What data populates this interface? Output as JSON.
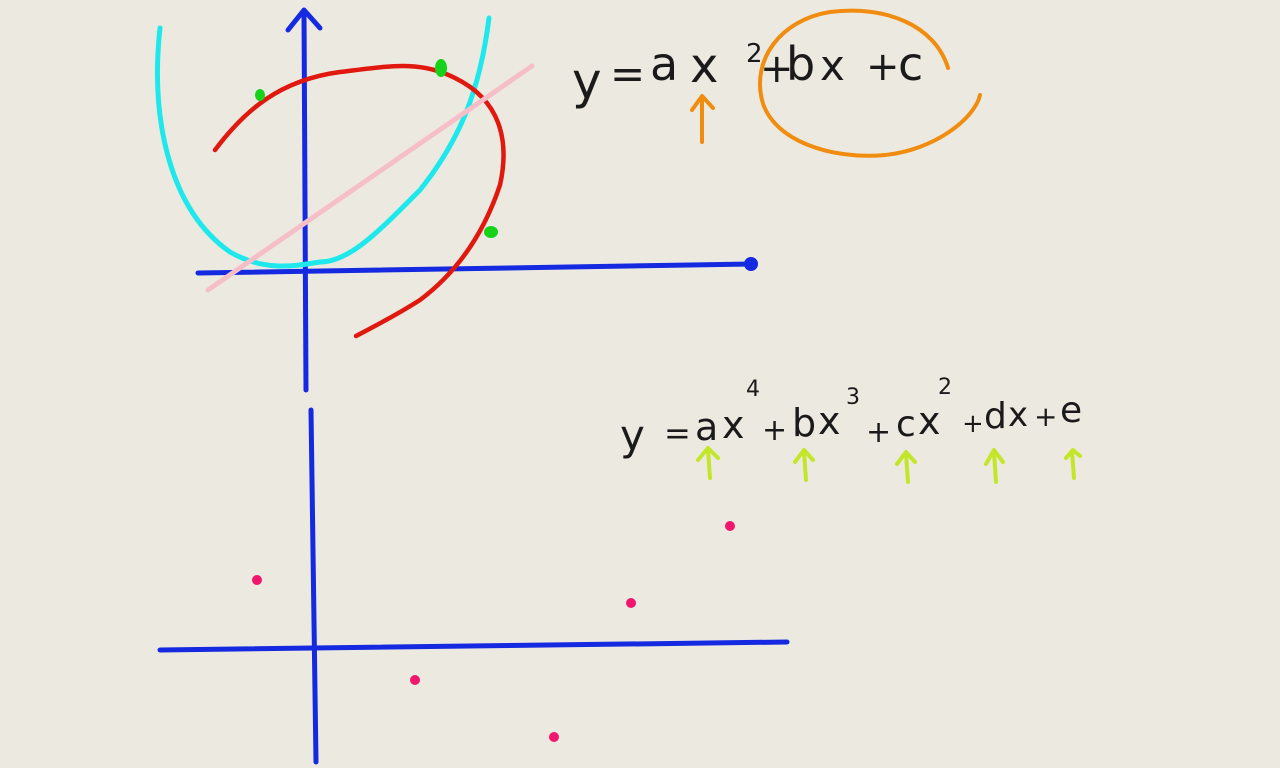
{
  "background_color": "#eceae0",
  "colors": {
    "axes": "#1429e0",
    "cubic_curve": "#e0180e",
    "parabola": "#1ee8ec",
    "line": "#f6bfc8",
    "green_points": "#17d21a",
    "orange_annotation": "#f08c10",
    "lime_arrows": "#c4e62a",
    "pink_points": "#f0166e",
    "ink": "#1a1a1a"
  },
  "equation_quadratic": {
    "y": "y",
    "eq": "=",
    "a": "a",
    "x": "x",
    "exp": "2",
    "plus1": "+",
    "b": "b",
    "x2": "x",
    "plus2": "+",
    "c": "c"
  },
  "equation_quartic": {
    "y": "y",
    "eq": "=",
    "a": "a",
    "x_a": "x",
    "exp4": "4",
    "plus1": "+",
    "b": "b",
    "x_b": "x",
    "exp3": "3",
    "plus2": "+",
    "c": "c",
    "x_c": "x",
    "exp2": "2",
    "plus3": "+",
    "d": "d",
    "x_d": "x",
    "plus4": "+",
    "e": "e"
  },
  "icons": {
    "arrow": "up-arrow-icon",
    "circle": "circle-highlight-icon"
  }
}
